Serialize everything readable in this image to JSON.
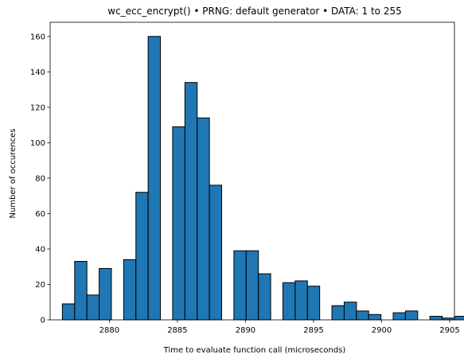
{
  "chart_data": {
    "type": "bar",
    "title": "wc_ecc_encrypt() • PRNG: default generator • DATA: 1 to 255",
    "xlabel": "Time to evaluate function call (microseconds)",
    "ylabel": "Number of occurences",
    "xlim": [
      2875.65,
      2905.35
    ],
    "ylim": [
      0,
      168
    ],
    "xticks": [
      2880,
      2885,
      2890,
      2895,
      2900,
      2905
    ],
    "yticks": [
      0,
      20,
      40,
      60,
      80,
      100,
      120,
      140,
      160
    ],
    "bin_width": 0.9,
    "bins": [
      {
        "x": 2877.0,
        "count": 9
      },
      {
        "x": 2877.9,
        "count": 33
      },
      {
        "x": 2878.8,
        "count": 14
      },
      {
        "x": 2879.7,
        "count": 29
      },
      {
        "x": 2881.5,
        "count": 34
      },
      {
        "x": 2882.4,
        "count": 72
      },
      {
        "x": 2883.3,
        "count": 160
      },
      {
        "x": 2885.1,
        "count": 109
      },
      {
        "x": 2886.0,
        "count": 134
      },
      {
        "x": 2886.9,
        "count": 114
      },
      {
        "x": 2887.8,
        "count": 76
      },
      {
        "x": 2889.6,
        "count": 39
      },
      {
        "x": 2890.5,
        "count": 39
      },
      {
        "x": 2891.4,
        "count": 26
      },
      {
        "x": 2893.2,
        "count": 21
      },
      {
        "x": 2894.1,
        "count": 22
      },
      {
        "x": 2895.0,
        "count": 19
      },
      {
        "x": 2896.8,
        "count": 8
      },
      {
        "x": 2897.7,
        "count": 10
      },
      {
        "x": 2898.6,
        "count": 5
      },
      {
        "x": 2899.5,
        "count": 3
      },
      {
        "x": 2901.3,
        "count": 4
      },
      {
        "x": 2902.2,
        "count": 5
      },
      {
        "x": 2904.0,
        "count": 2
      },
      {
        "x": 2904.9,
        "count": 1
      },
      {
        "x": 2905.8,
        "count": 2
      }
    ],
    "grid": false,
    "bar_color": "#1f77b4",
    "edge_color": "#000000"
  }
}
